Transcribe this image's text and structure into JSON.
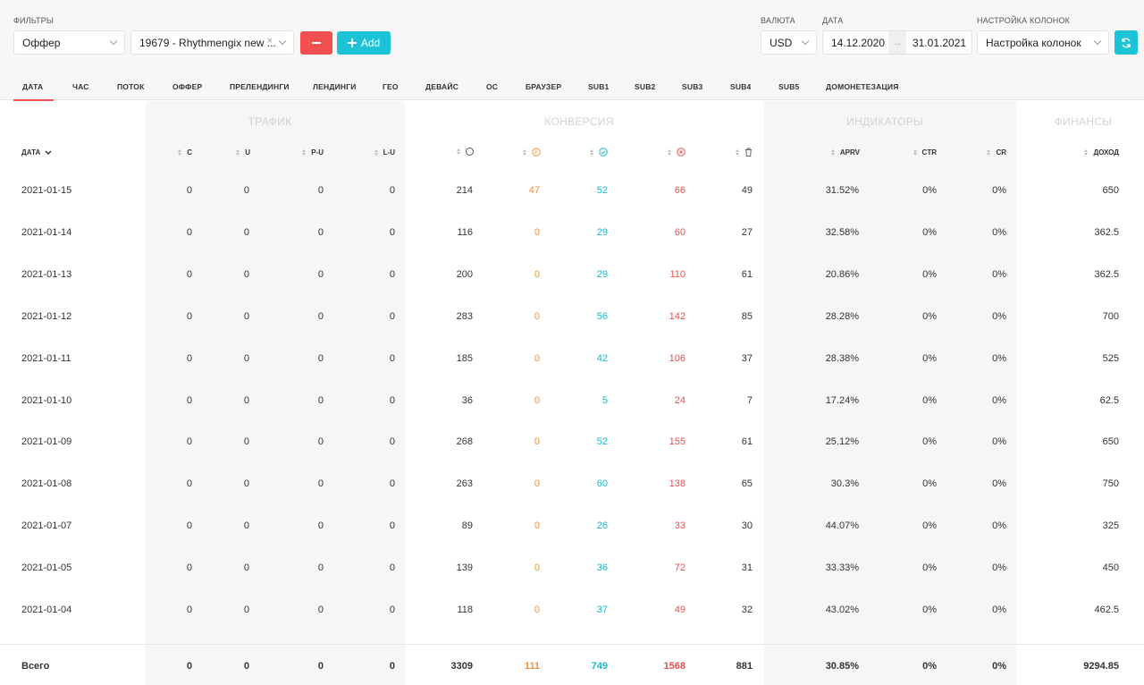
{
  "filters": {
    "label": "ФИЛЬТРЫ",
    "type_value": "Оффер",
    "offer_value": "19679 - Rhythmengix new ...",
    "remove_label": "−",
    "add_label": "Add"
  },
  "currency": {
    "label": "ВАЛЮТА",
    "value": "USD"
  },
  "date": {
    "label": "ДАТА",
    "from": "14.12.2020",
    "arrow": "→",
    "to": "31.01.2021"
  },
  "columns_setting": {
    "label": "НАСТРОЙКА КОЛОНОК",
    "value": "Настройка колонок"
  },
  "tabs": [
    "ДАТА",
    "ЧАС",
    "ПОТОК",
    "ОФФЕР",
    "ПРЕЛЕНДИНГИ",
    "ЛЕНДИНГИ",
    "ГЕО",
    "ДЕВАЙС",
    "ОС",
    "БРАУЗЕР",
    "SUB1",
    "SUB2",
    "SUB3",
    "SUB4",
    "SUB5",
    "ДОМОНЕТЕЗАЦИЯ"
  ],
  "active_tab": "ДАТА",
  "groups": {
    "traffic": "ТРАФИК",
    "conversion": "КОНВЕРСИЯ",
    "indicators": "ИНДИКАТОРЫ",
    "finance": "ФИНАНСЫ"
  },
  "headers": {
    "date": "ДАТА",
    "c": "C",
    "u": "U",
    "pu": "P-U",
    "lu": "L-U",
    "aprv": "APRV",
    "ctr": "CTR",
    "cr": "CR",
    "income": "ДОХОД"
  },
  "icons": {
    "all": "circle-icon",
    "pending": "clock-icon",
    "approved": "check-circle-icon",
    "rejected": "x-circle-icon",
    "trash": "trash-icon",
    "refresh": "refresh-icon",
    "plus": "plus-icon"
  },
  "colors": {
    "red": "#f0504f",
    "teal": "#1cc3d6",
    "orange": "#f0903a"
  },
  "rows": [
    {
      "date": "2021-01-15",
      "c": "0",
      "u": "0",
      "pu": "0",
      "lu": "0",
      "all": "214",
      "pending": "47",
      "approved": "52",
      "rejected": "66",
      "trash": "49",
      "aprv": "31.52%",
      "ctr": "0%",
      "cr": "0%",
      "income": "650"
    },
    {
      "date": "2021-01-14",
      "c": "0",
      "u": "0",
      "pu": "0",
      "lu": "0",
      "all": "116",
      "pending": "0",
      "approved": "29",
      "rejected": "60",
      "trash": "27",
      "aprv": "32.58%",
      "ctr": "0%",
      "cr": "0%",
      "income": "362.5"
    },
    {
      "date": "2021-01-13",
      "c": "0",
      "u": "0",
      "pu": "0",
      "lu": "0",
      "all": "200",
      "pending": "0",
      "approved": "29",
      "rejected": "110",
      "trash": "61",
      "aprv": "20.86%",
      "ctr": "0%",
      "cr": "0%",
      "income": "362.5"
    },
    {
      "date": "2021-01-12",
      "c": "0",
      "u": "0",
      "pu": "0",
      "lu": "0",
      "all": "283",
      "pending": "0",
      "approved": "56",
      "rejected": "142",
      "trash": "85",
      "aprv": "28.28%",
      "ctr": "0%",
      "cr": "0%",
      "income": "700"
    },
    {
      "date": "2021-01-11",
      "c": "0",
      "u": "0",
      "pu": "0",
      "lu": "0",
      "all": "185",
      "pending": "0",
      "approved": "42",
      "rejected": "106",
      "trash": "37",
      "aprv": "28.38%",
      "ctr": "0%",
      "cr": "0%",
      "income": "525"
    },
    {
      "date": "2021-01-10",
      "c": "0",
      "u": "0",
      "pu": "0",
      "lu": "0",
      "all": "36",
      "pending": "0",
      "approved": "5",
      "rejected": "24",
      "trash": "7",
      "aprv": "17.24%",
      "ctr": "0%",
      "cr": "0%",
      "income": "62.5"
    },
    {
      "date": "2021-01-09",
      "c": "0",
      "u": "0",
      "pu": "0",
      "lu": "0",
      "all": "268",
      "pending": "0",
      "approved": "52",
      "rejected": "155",
      "trash": "61",
      "aprv": "25.12%",
      "ctr": "0%",
      "cr": "0%",
      "income": "650"
    },
    {
      "date": "2021-01-08",
      "c": "0",
      "u": "0",
      "pu": "0",
      "lu": "0",
      "all": "263",
      "pending": "0",
      "approved": "60",
      "rejected": "138",
      "trash": "65",
      "aprv": "30.3%",
      "ctr": "0%",
      "cr": "0%",
      "income": "750"
    },
    {
      "date": "2021-01-07",
      "c": "0",
      "u": "0",
      "pu": "0",
      "lu": "0",
      "all": "89",
      "pending": "0",
      "approved": "26",
      "rejected": "33",
      "trash": "30",
      "aprv": "44.07%",
      "ctr": "0%",
      "cr": "0%",
      "income": "325"
    },
    {
      "date": "2021-01-05",
      "c": "0",
      "u": "0",
      "pu": "0",
      "lu": "0",
      "all": "139",
      "pending": "0",
      "approved": "36",
      "rejected": "72",
      "trash": "31",
      "aprv": "33.33%",
      "ctr": "0%",
      "cr": "0%",
      "income": "450"
    },
    {
      "date": "2021-01-04",
      "c": "0",
      "u": "0",
      "pu": "0",
      "lu": "0",
      "all": "118",
      "pending": "0",
      "approved": "37",
      "rejected": "49",
      "trash": "32",
      "aprv": "43.02%",
      "ctr": "0%",
      "cr": "0%",
      "income": "462.5"
    }
  ],
  "totals": {
    "date": "Всего",
    "c": "0",
    "u": "0",
    "pu": "0",
    "lu": "0",
    "all": "3309",
    "pending": "111",
    "approved": "749",
    "rejected": "1568",
    "trash": "881",
    "aprv": "30.85%",
    "ctr": "0%",
    "cr": "0%",
    "income": "9294.85"
  }
}
